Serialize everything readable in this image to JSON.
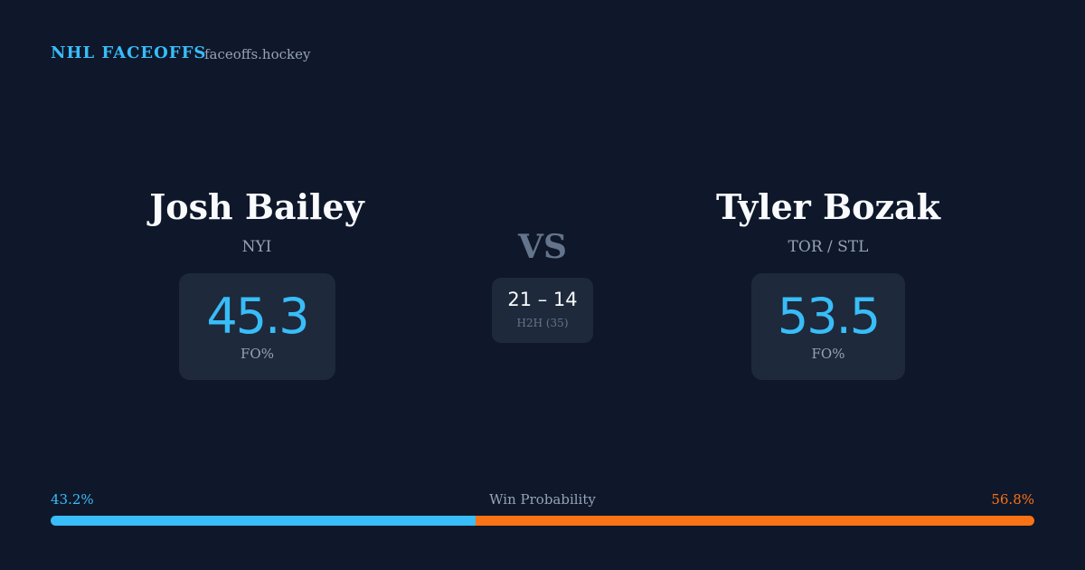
{
  "header": {
    "brand": "NHL FACEOFFS",
    "site": "faceoffs.hockey"
  },
  "players": [
    {
      "name": "Josh Bailey",
      "team": "NYI",
      "fo_pct": 45.3,
      "fo_label": "FO%"
    },
    {
      "name": "Tyler Bozak",
      "team": "TOR / STL",
      "fo_pct": 53.5,
      "fo_label": "FO%"
    }
  ],
  "versus": "VS",
  "h2h": {
    "score": "21 – 14",
    "label": "H2H (35)"
  },
  "win_probability": {
    "title": "Win Probability",
    "values": [
      43.2,
      56.8
    ],
    "value_labels": [
      "43.2%",
      "56.8%"
    ],
    "colors": [
      "#38bdf8",
      "#f97316"
    ]
  }
}
